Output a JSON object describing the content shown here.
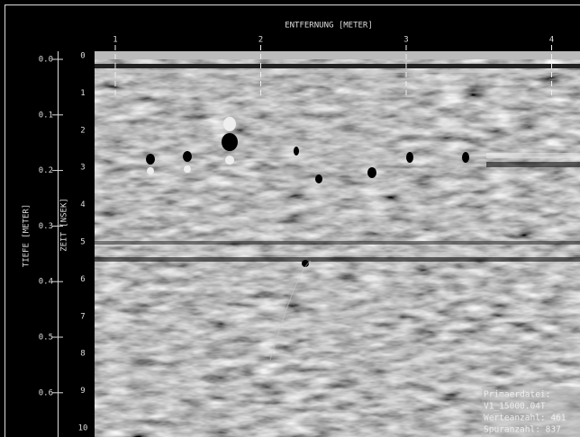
{
  "header": {
    "x_axis_title": "ENTFERNUNG [METER]",
    "x_ticks": [
      "1",
      "2",
      "3",
      "4"
    ]
  },
  "left_axes": {
    "depth_title": "TIEFE [METER]",
    "depth_ticks": [
      "0.0",
      "0.1",
      "0.2",
      "0.3",
      "0.4",
      "0.5",
      "0.6"
    ],
    "time_title": "ZEIT [NSEK]",
    "time_ticks": [
      "0",
      "1",
      "2",
      "3",
      "4",
      "5",
      "6",
      "7",
      "8",
      "9",
      "10"
    ]
  },
  "info_box": {
    "lines": [
      "Primaerdatei:",
      "V1_15000.04T",
      "Werteanzahl: 461",
      "Spuranzahl: 837"
    ]
  }
}
